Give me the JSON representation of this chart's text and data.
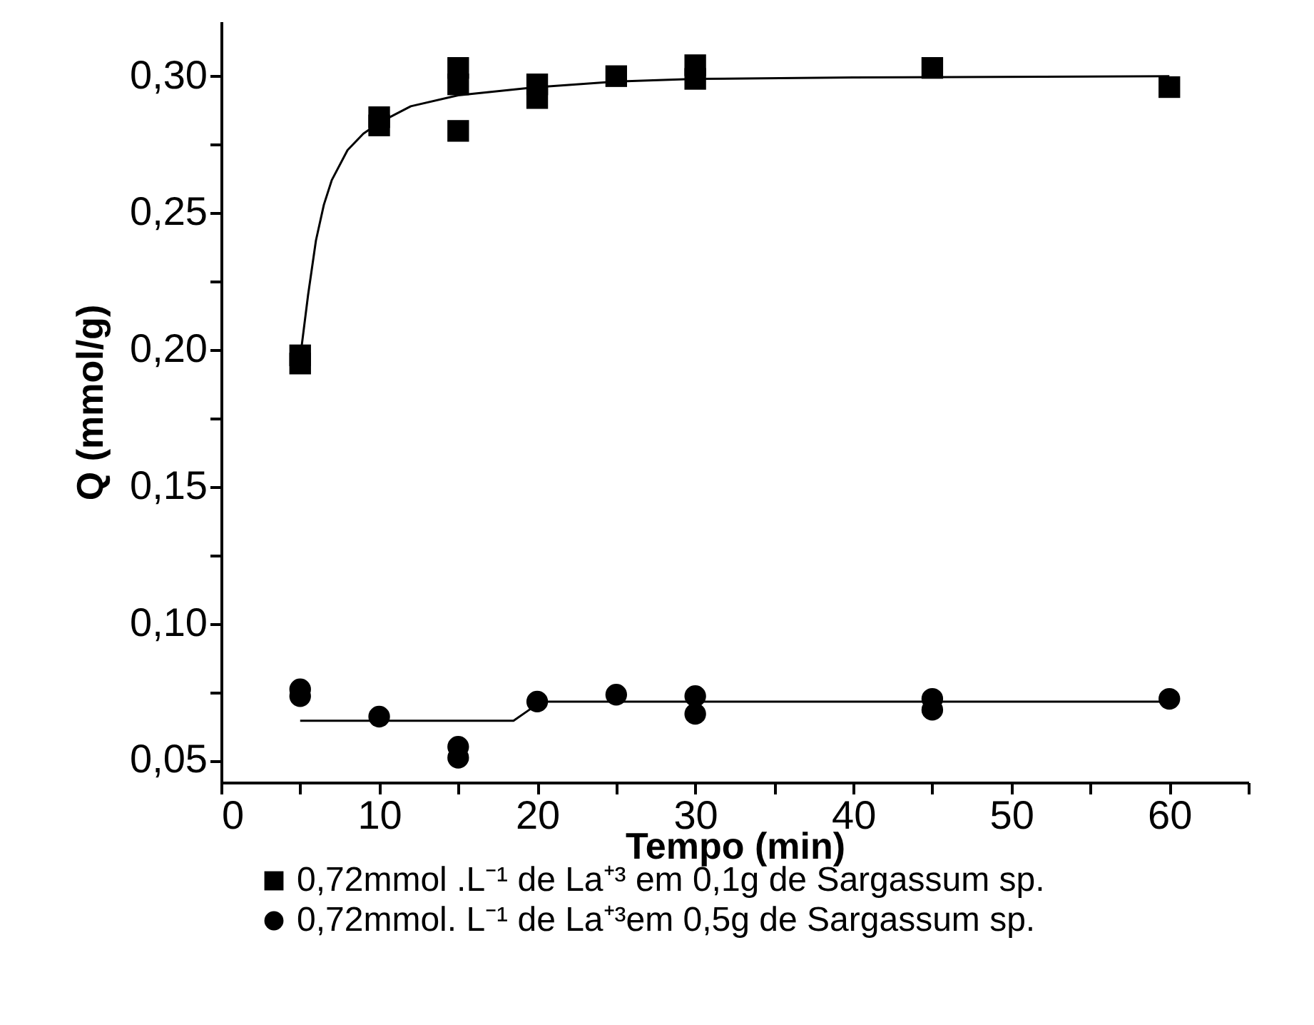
{
  "chart_data": {
    "type": "scatter",
    "xlabel": "Tempo (min)",
    "ylabel": "Q (mmol/g)",
    "xlim": [
      0,
      65
    ],
    "ylim": [
      0.042,
      0.32
    ],
    "xticks": [
      0,
      {
        "value": 5,
        "label": null
      },
      10,
      {
        "value": 15,
        "label": null
      },
      20,
      {
        "value": 25,
        "label": null
      },
      30,
      {
        "value": 35,
        "label": null
      },
      40,
      {
        "value": 45,
        "label": null
      },
      50,
      {
        "value": 55,
        "label": null
      },
      60,
      {
        "value": 65,
        "label": null
      }
    ],
    "yticks": [
      {
        "value": 0.05,
        "label": "0,05"
      },
      {
        "value": 0.075,
        "label": null
      },
      {
        "value": 0.1,
        "label": "0,10"
      },
      {
        "value": 0.125,
        "label": null
      },
      {
        "value": 0.15,
        "label": "0,15"
      },
      {
        "value": 0.175,
        "label": null
      },
      {
        "value": 0.2,
        "label": "0,20"
      },
      {
        "value": 0.225,
        "label": null
      },
      {
        "value": 0.25,
        "label": "0,25"
      },
      {
        "value": 0.275,
        "label": null
      },
      {
        "value": 0.3,
        "label": "0,30"
      }
    ],
    "legend": "bottom",
    "series": [
      {
        "name": "0,72mmol .L⁻¹ de La⁺³ em 0,1g de Sargassum sp.",
        "color": "#000000",
        "marker": "square",
        "x": [
          5,
          5,
          10,
          10,
          15,
          15,
          15,
          20,
          20,
          25,
          30,
          30,
          45,
          60
        ],
        "values": [
          0.195,
          0.198,
          0.282,
          0.285,
          0.303,
          0.297,
          0.28,
          0.297,
          0.292,
          0.3,
          0.304,
          0.299,
          0.303,
          0.296
        ]
      },
      {
        "name": "0,72mmol. L⁻¹ de La⁺³em 0,5g de Sargassum sp.",
        "color": "#000000",
        "marker": "circle",
        "x": [
          5,
          5,
          10,
          15,
          15,
          20,
          25,
          30,
          30,
          45,
          45,
          60
        ],
        "values": [
          0.076,
          0.0735,
          0.066,
          0.055,
          0.051,
          0.0715,
          0.074,
          0.0735,
          0.067,
          0.0725,
          0.0685,
          0.0725
        ]
      },
      {
        "type": "line",
        "color": "#000000",
        "x": [
          5,
          5.5,
          6,
          6.5,
          7,
          8,
          9,
          10,
          12,
          15,
          20,
          25,
          30,
          40,
          60
        ],
        "values": [
          0.197,
          0.22,
          0.24,
          0.253,
          0.262,
          0.273,
          0.279,
          0.283,
          0.289,
          0.293,
          0.296,
          0.298,
          0.299,
          0.2995,
          0.3
        ]
      },
      {
        "type": "line",
        "color": "#000000",
        "x": [
          5,
          18.5,
          19.5,
          20,
          60
        ],
        "values": [
          0.0645,
          0.0645,
          0.0685,
          0.0715,
          0.0715
        ]
      }
    ]
  }
}
